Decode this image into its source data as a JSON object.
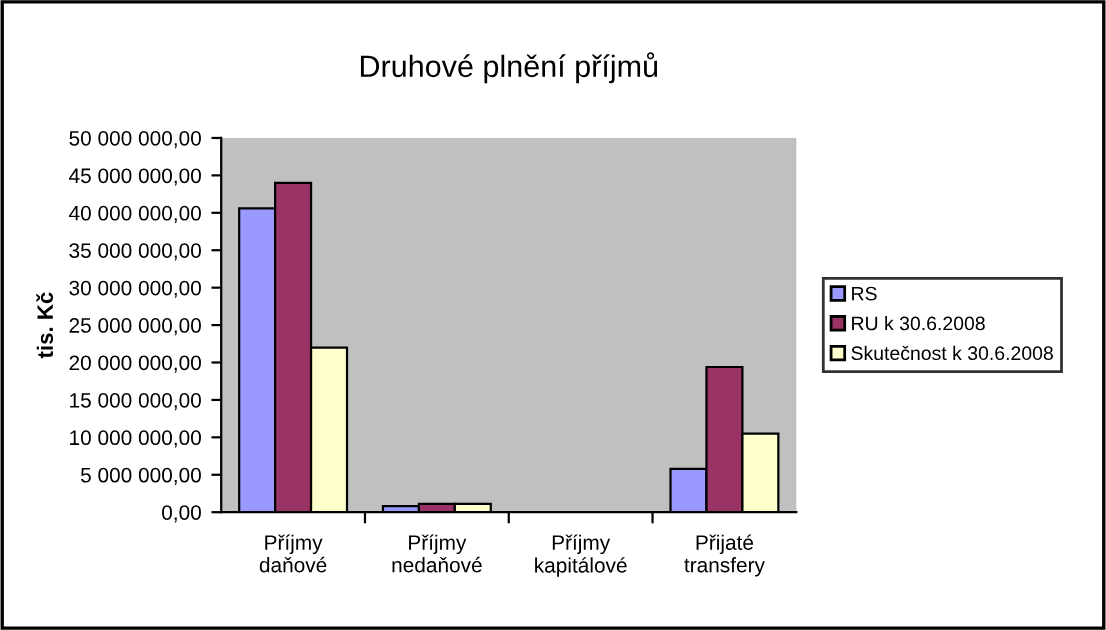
{
  "chart_data": {
    "type": "bar",
    "title": "Druhové plnění příjmů",
    "ylabel": "tis. Kč",
    "categories": [
      "Příjmy\ndaňové",
      "Příjmy\nnedaňové",
      "Příjmy\nkapitálové",
      "Přijaté\ntransfery"
    ],
    "series": [
      {
        "name": "RS",
        "color": "#9999ff",
        "values": [
          40600000,
          800000,
          0,
          5800000
        ]
      },
      {
        "name": "RU k 30.6.2008",
        "color": "#993366",
        "values": [
          44000000,
          1100000,
          0,
          19400000
        ]
      },
      {
        "name": "Skutečnost k 30.6.2008",
        "color": "#ffffcc",
        "values": [
          22000000,
          1100000,
          0,
          10500000
        ]
      }
    ],
    "ylim": [
      0,
      50000000
    ],
    "yticks": [
      {
        "value": 0,
        "label": "0,00"
      },
      {
        "value": 5000000,
        "label": "5 000 000,00"
      },
      {
        "value": 10000000,
        "label": "10 000 000,00"
      },
      {
        "value": 15000000,
        "label": "15 000 000,00"
      },
      {
        "value": 20000000,
        "label": "20 000 000,00"
      },
      {
        "value": 25000000,
        "label": "25 000 000,00"
      },
      {
        "value": 30000000,
        "label": "30 000 000,00"
      },
      {
        "value": 35000000,
        "label": "35 000 000,00"
      },
      {
        "value": 40000000,
        "label": "40 000 000,00"
      },
      {
        "value": 45000000,
        "label": "45 000 000,00"
      },
      {
        "value": 50000000,
        "label": "50 000 000,00"
      }
    ],
    "grid": false,
    "legend": "right"
  }
}
